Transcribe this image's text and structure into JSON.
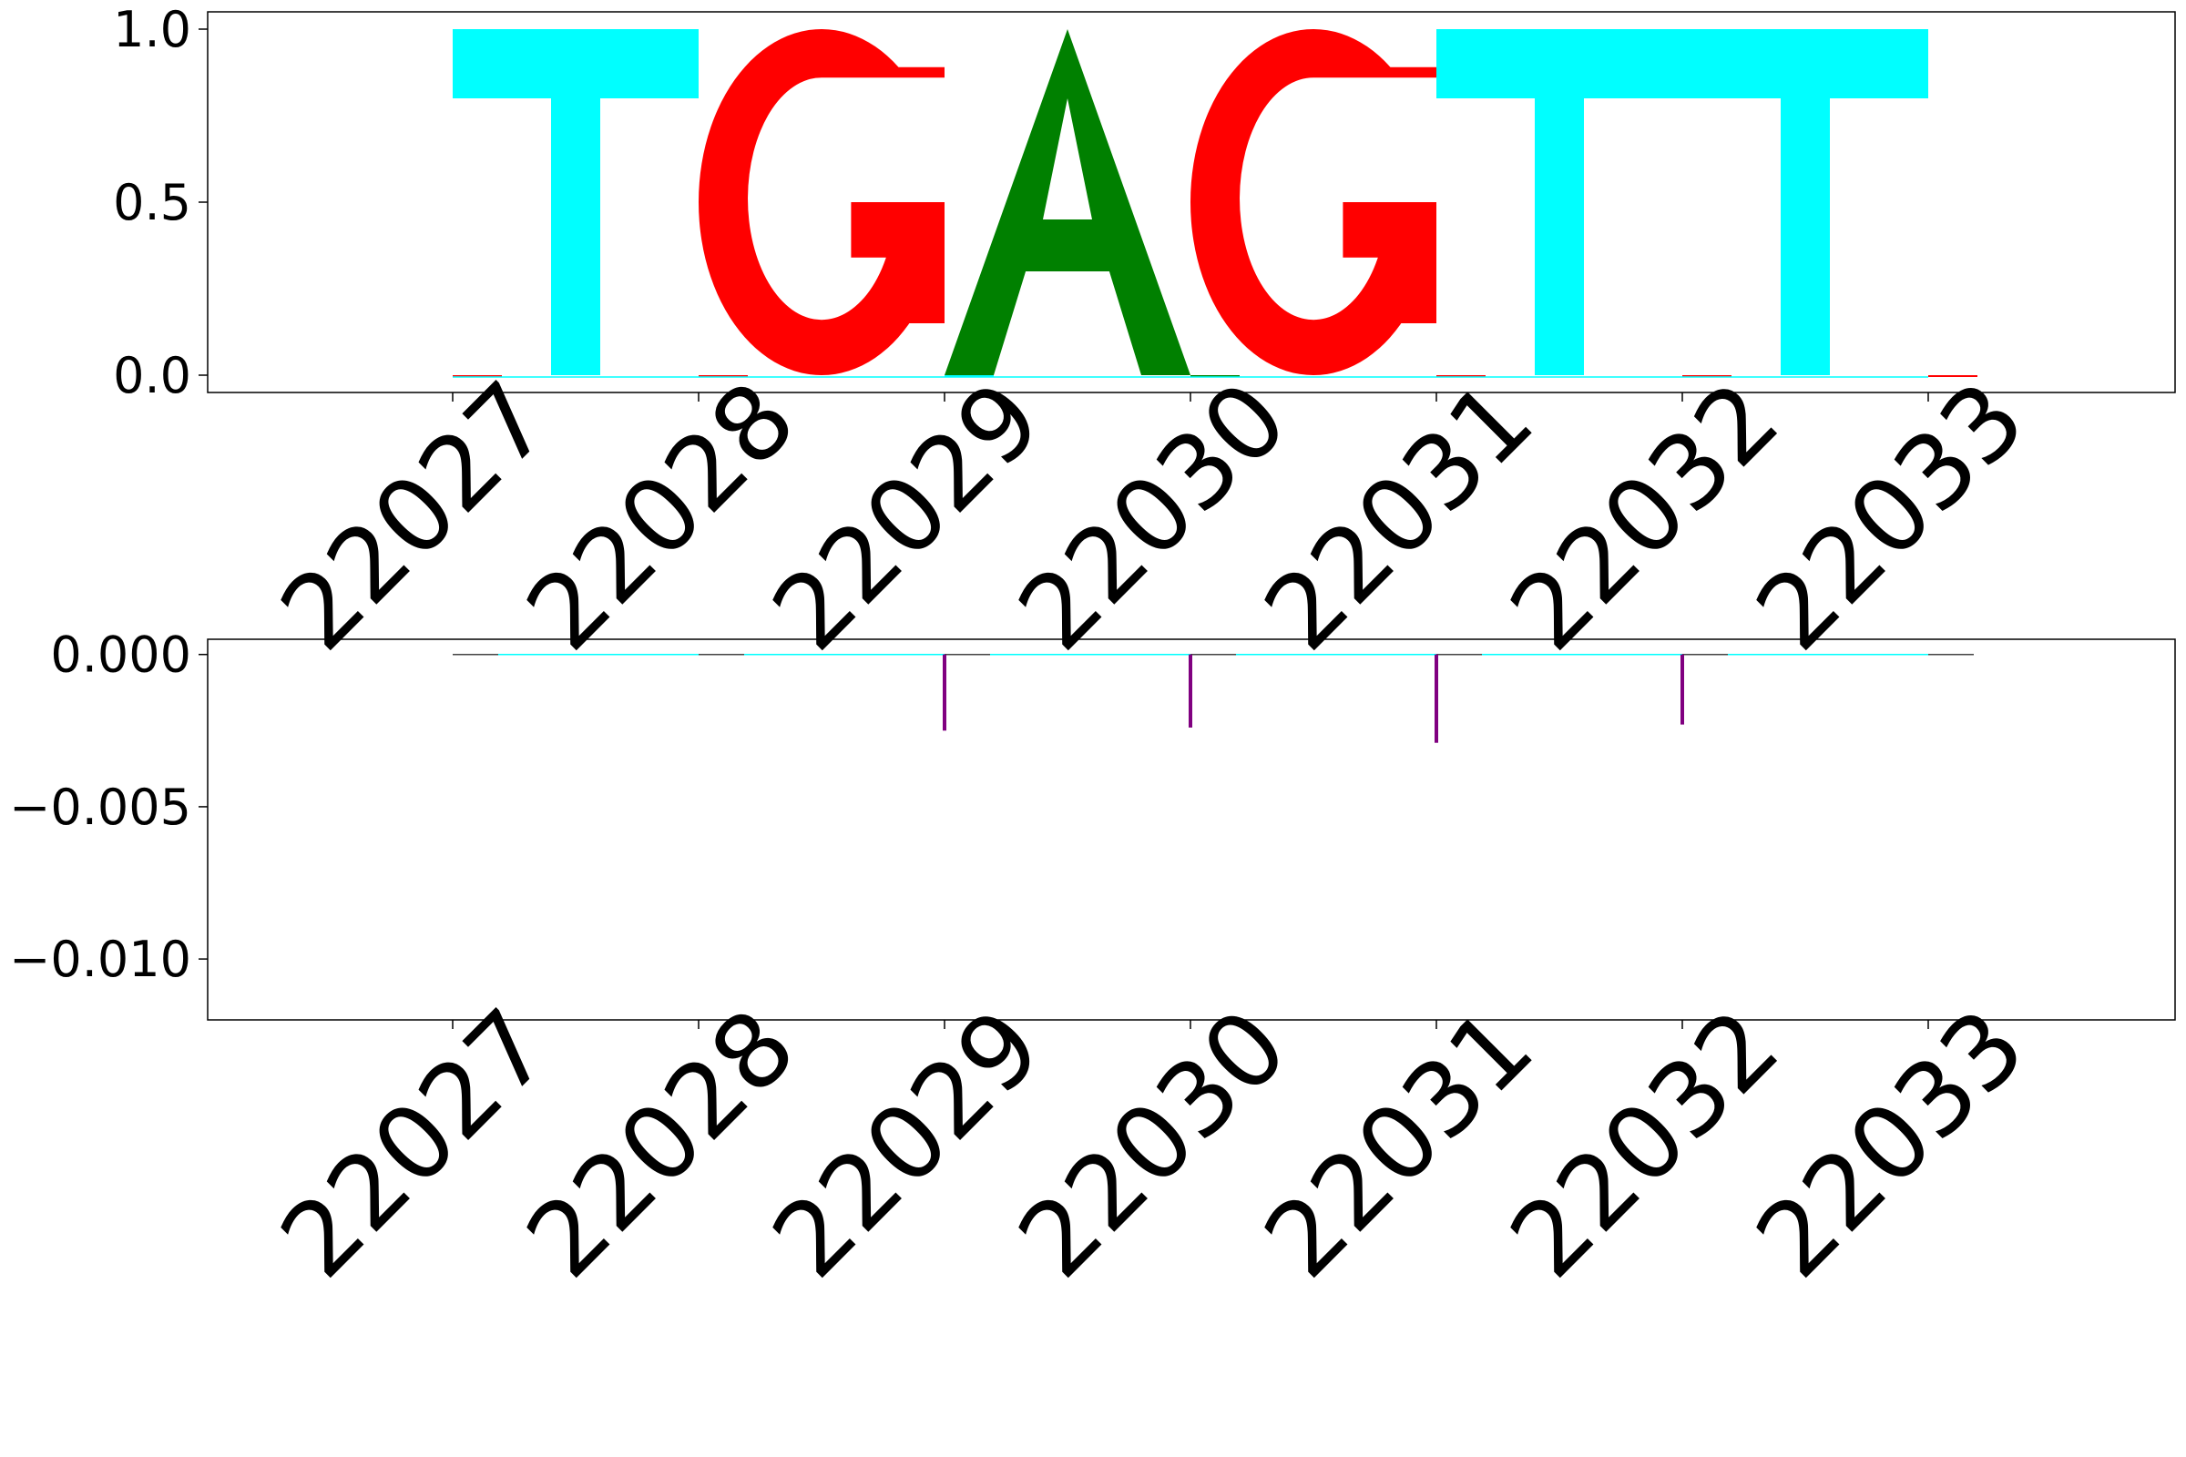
{
  "chart_data": [
    {
      "type": "sequence-logo",
      "x": [
        22027,
        22028,
        22029,
        22030,
        22031,
        22032,
        22033
      ],
      "x_tick_labels": [
        "22027",
        "22028",
        "22029",
        "22030",
        "22031",
        "22032",
        "22033"
      ],
      "letters": [
        {
          "x": 22027,
          "letter": "T",
          "value": 1.0,
          "color": "#00ffff"
        },
        {
          "x": 22028,
          "letter": "G",
          "value": 1.0,
          "color": "#ff0000"
        },
        {
          "x": 22029,
          "letter": "A",
          "value": 1.0,
          "color": "#008000"
        },
        {
          "x": 22030,
          "letter": "G",
          "value": 1.0,
          "color": "#ff0000"
        },
        {
          "x": 22031,
          "letter": "T",
          "value": 1.0,
          "color": "#00ffff"
        },
        {
          "x": 22032,
          "letter": "T",
          "value": 1.0,
          "color": "#00ffff"
        }
      ],
      "baseline_marks": [
        {
          "x": 22027,
          "color": "#ff0000"
        },
        {
          "x": 22028,
          "color": "#ff0000"
        },
        {
          "x": 22029,
          "color": "#00ffff"
        },
        {
          "x": 22030,
          "color": "#008000"
        },
        {
          "x": 22031,
          "color": "#ff0000"
        },
        {
          "x": 22032,
          "color": "#ff0000"
        },
        {
          "x": 22033,
          "color": "#ff0000"
        }
      ],
      "ylim": [
        -0.05,
        1.05
      ],
      "y_ticks": [
        0.0,
        0.5,
        1.0
      ],
      "y_tick_labels": [
        "0.0",
        "0.5",
        "1.0"
      ],
      "grid": false
    },
    {
      "type": "bar",
      "x": [
        22029,
        22030,
        22031,
        22032
      ],
      "values": [
        -0.0025,
        -0.0024,
        -0.0029,
        -0.0023
      ],
      "bar_color": "#800080",
      "baseline_color": "#00ffff",
      "x_ticks": [
        22027,
        22028,
        22029,
        22030,
        22031,
        22032,
        22033
      ],
      "x_tick_labels": [
        "22027",
        "22028",
        "22029",
        "22030",
        "22031",
        "22032",
        "22033"
      ],
      "ylim": [
        -0.012,
        0.0005
      ],
      "y_ticks": [
        0.0,
        -0.005,
        -0.01
      ],
      "y_tick_labels": [
        "0.000",
        "−0.005",
        "−0.010"
      ],
      "grid": false
    }
  ]
}
